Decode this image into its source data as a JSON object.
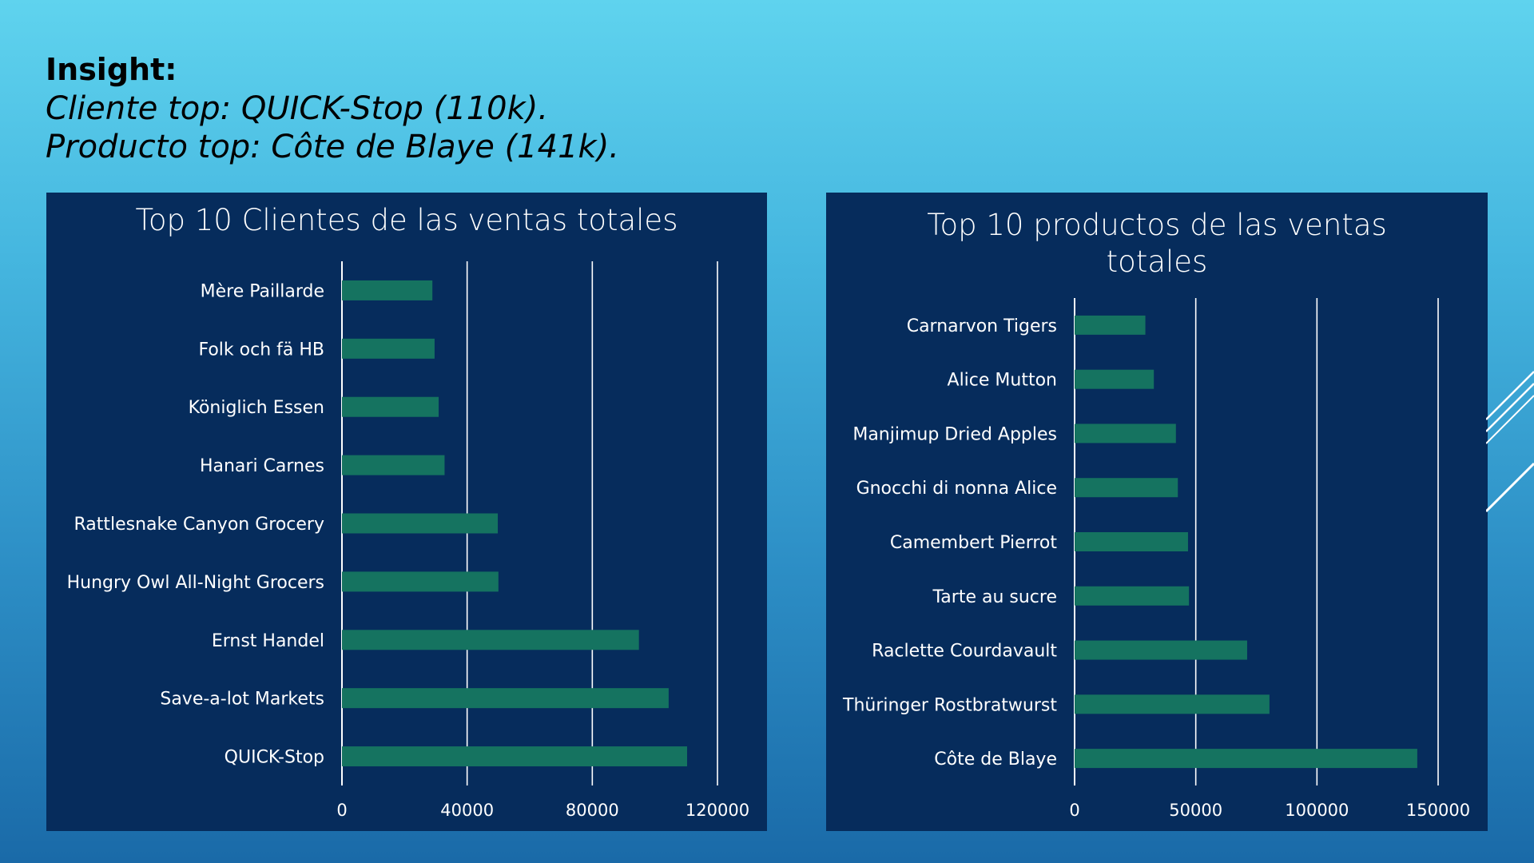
{
  "insight": {
    "heading": "Insight:",
    "line1": "Cliente top: QUICK-Stop (110k).",
    "line2": "Producto top: Côte de Blaye (141k)."
  },
  "colors": {
    "panel": "#062c5c",
    "bar": "#157360",
    "text": "#ffffff",
    "grid": "#ffffff"
  },
  "chart_data": [
    {
      "type": "bar",
      "orientation": "horizontal",
      "title": "Top 10 Clientes de las ventas totales",
      "categories": [
        "Mère Paillarde",
        "Folk och fä HB",
        "Königlich Essen",
        "Hanari Carnes",
        "Rattlesnake Canyon Grocery",
        "Hungry Owl All-Night Grocers",
        "Ernst Handel",
        "Save-a-lot Markets",
        "QUICK-Stop"
      ],
      "values": [
        28900,
        29600,
        30900,
        32800,
        49800,
        50000,
        94900,
        104400,
        110300
      ],
      "xlim": [
        0,
        120000
      ],
      "xticks": [
        "0",
        "40000",
        "80000",
        "120000"
      ],
      "tick_values": [
        0,
        40000,
        80000,
        120000
      ],
      "grid": true
    },
    {
      "type": "bar",
      "orientation": "horizontal",
      "title": "Top 10 productos de las ventas totales",
      "categories": [
        "Carnarvon Tigers",
        "Alice Mutton",
        "Manjimup Dried Apples",
        "Gnocchi di nonna Alice",
        "Camembert Pierrot",
        "Tarte au sucre",
        "Raclette Courdavault",
        "Thüringer Rostbratwurst",
        "Côte de Blaye"
      ],
      "values": [
        29200,
        32700,
        41800,
        42600,
        46800,
        47200,
        71200,
        80400,
        141400
      ],
      "xlim": [
        0,
        150000
      ],
      "xticks": [
        "0",
        "50000",
        "100000",
        "150000"
      ],
      "tick_values": [
        0,
        50000,
        100000,
        150000
      ],
      "grid": true
    }
  ]
}
